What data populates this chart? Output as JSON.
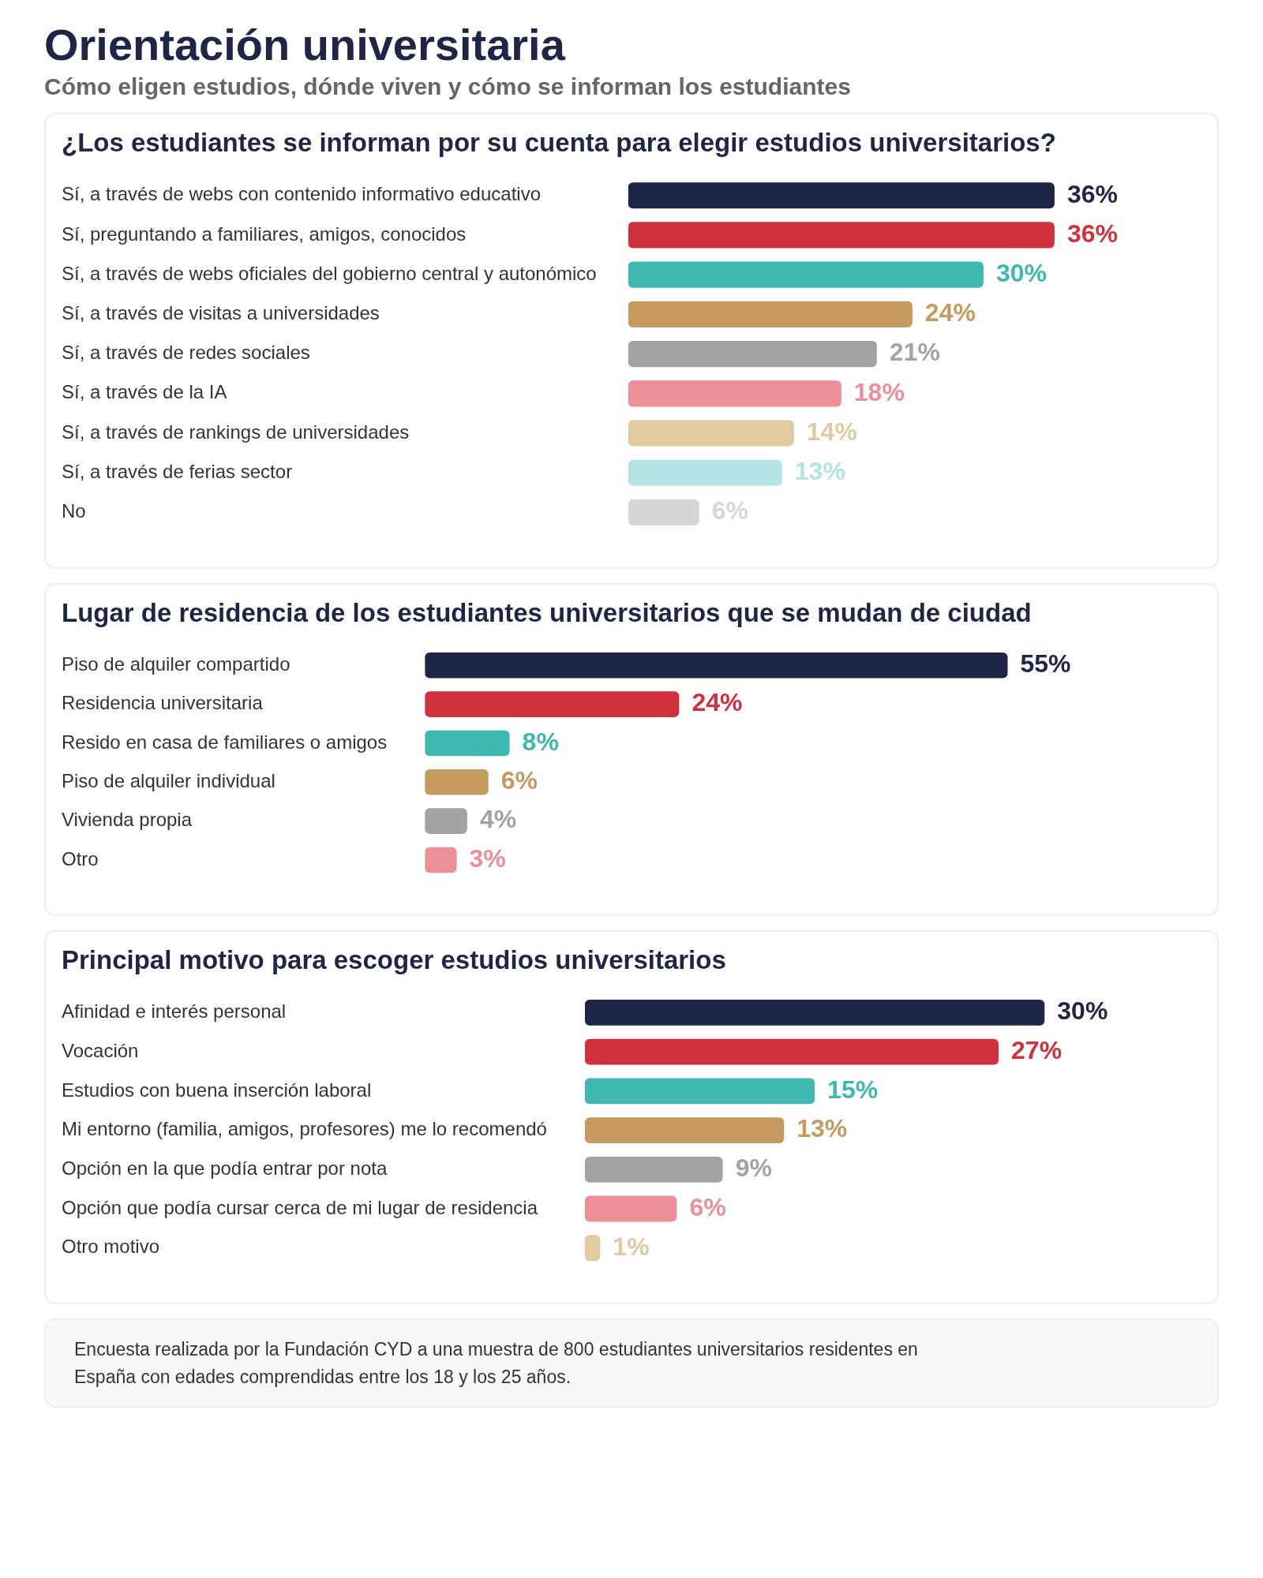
{
  "chart_data": [
    {
      "type": "other",
      "title": "Orientación universitaria",
      "subtitle": "Cómo eligen estudios, dónde viven y cómo se informan los estudiantes"
    },
    {
      "type": "bar",
      "orientation": "horizontal",
      "title": "¿Los estudiantes se informan por su cuenta para elegir estudios universitarios?",
      "categories": [
        "Sí, a través de webs con contenido informativo educativo",
        "Sí, preguntando a familiares, amigos, conocidos",
        "Sí, a través de webs oficiales del gobierno central y autonómico",
        "Sí, a través de visitas a universidades",
        "Sí, a través de redes sociales",
        "Sí, a través de la IA",
        "Sí, a través de rankings de universidades",
        "Sí, a través de ferias sector",
        "No"
      ],
      "values": [
        36,
        36,
        30,
        24,
        21,
        18,
        14,
        13,
        6
      ],
      "value_labels": [
        "36%",
        "36%",
        "30%",
        "24%",
        "21%",
        "18%",
        "14%",
        "13%",
        "6%"
      ],
      "colors": [
        "#1f2547",
        "#d0313d",
        "#3fb8b0",
        "#c49a5e",
        "#a3a3a3",
        "#ec8f98",
        "#e0cba0",
        "#b3e3e3",
        "#d6d6d6"
      ]
    },
    {
      "type": "bar",
      "orientation": "horizontal",
      "title": "Lugar de residencia de los estudiantes universitarios que se mudan de ciudad",
      "categories": [
        "Piso de alquiler compartido",
        "Residencia universitaria",
        "Resido en casa de familiares o amigos",
        "Piso de alquiler individual",
        "Vivienda propia",
        "Otro"
      ],
      "values": [
        55,
        24,
        8,
        6,
        4,
        3
      ],
      "value_labels": [
        "55%",
        "24%",
        "8%",
        "6%",
        "4%",
        "3%"
      ],
      "colors": [
        "#1f2547",
        "#d0313d",
        "#3fb8b0",
        "#c49a5e",
        "#a3a3a3",
        "#ec8f98"
      ]
    },
    {
      "type": "bar",
      "orientation": "horizontal",
      "title": "Principal motivo para escoger estudios universitarios",
      "categories": [
        "Afinidad e interés personal",
        "Vocación",
        "Estudios con buena inserción laboral",
        "Mi entorno (familia, amigos, profesores) me lo recomendó",
        "Opción en la que podía entrar por nota",
        "Opción que podía cursar cerca de mi lugar de residencia",
        "Otro motivo"
      ],
      "values": [
        30,
        27,
        15,
        13,
        9,
        6,
        1
      ],
      "value_labels": [
        "30%",
        "27%",
        "15%",
        "13%",
        "9%",
        "6%",
        "1%"
      ],
      "colors": [
        "#1f2547",
        "#d0313d",
        "#3fb8b0",
        "#c49a5e",
        "#a3a3a3",
        "#ec8f98",
        "#e0cba0"
      ]
    },
    {
      "type": "other",
      "annotations": [
        "Encuesta realizada por la Fundación CYD a una muestra de 800 estudiantes universitarios residentes en España con edades comprendidas entre los 18 y los 25 años."
      ]
    }
  ]
}
